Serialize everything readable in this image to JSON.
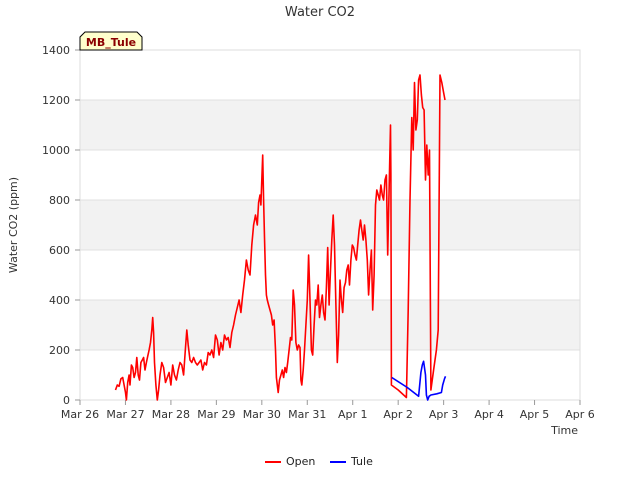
{
  "chart_data": {
    "type": "line",
    "title": "Water CO2",
    "xlabel": "Time",
    "ylabel": "Water CO2 (ppm)",
    "site_label": "MB_Tule",
    "ylim": [
      0,
      1400
    ],
    "xlim": [
      0,
      11
    ],
    "x_tick_labels": [
      "Mar 26",
      "Mar 27",
      "Mar 28",
      "Mar 29",
      "Mar 30",
      "Mar 31",
      "Apr 1",
      "Apr 2",
      "Apr 3",
      "Apr 4",
      "Apr 5",
      "Apr 6"
    ],
    "y_ticks": [
      0,
      200,
      400,
      600,
      800,
      1000,
      1200,
      1400
    ],
    "x_unit": "days since Mar 26",
    "series": [
      {
        "name": "Open",
        "color": "#ff0000",
        "points": [
          [
            0.78,
            40
          ],
          [
            0.82,
            60
          ],
          [
            0.86,
            55
          ],
          [
            0.9,
            85
          ],
          [
            0.94,
            90
          ],
          [
            0.97,
            60
          ],
          [
            1.0,
            30
          ],
          [
            1.02,
            0
          ],
          [
            1.05,
            70
          ],
          [
            1.08,
            100
          ],
          [
            1.1,
            60
          ],
          [
            1.13,
            140
          ],
          [
            1.16,
            130
          ],
          [
            1.19,
            90
          ],
          [
            1.22,
            110
          ],
          [
            1.25,
            170
          ],
          [
            1.28,
            100
          ],
          [
            1.31,
            80
          ],
          [
            1.34,
            150
          ],
          [
            1.37,
            160
          ],
          [
            1.4,
            170
          ],
          [
            1.43,
            120
          ],
          [
            1.46,
            150
          ],
          [
            1.49,
            175
          ],
          [
            1.52,
            200
          ],
          [
            1.55,
            230
          ],
          [
            1.58,
            280
          ],
          [
            1.6,
            330
          ],
          [
            1.62,
            270
          ],
          [
            1.64,
            150
          ],
          [
            1.67,
            60
          ],
          [
            1.7,
            0
          ],
          [
            1.73,
            40
          ],
          [
            1.76,
            100
          ],
          [
            1.8,
            150
          ],
          [
            1.84,
            130
          ],
          [
            1.88,
            70
          ],
          [
            1.92,
            90
          ],
          [
            1.96,
            110
          ],
          [
            2.0,
            60
          ],
          [
            2.04,
            140
          ],
          [
            2.08,
            100
          ],
          [
            2.12,
            80
          ],
          [
            2.16,
            120
          ],
          [
            2.2,
            150
          ],
          [
            2.24,
            140
          ],
          [
            2.28,
            100
          ],
          [
            2.32,
            210
          ],
          [
            2.35,
            280
          ],
          [
            2.38,
            220
          ],
          [
            2.42,
            160
          ],
          [
            2.46,
            150
          ],
          [
            2.5,
            170
          ],
          [
            2.54,
            150
          ],
          [
            2.58,
            140
          ],
          [
            2.62,
            150
          ],
          [
            2.66,
            160
          ],
          [
            2.7,
            120
          ],
          [
            2.74,
            150
          ],
          [
            2.78,
            140
          ],
          [
            2.82,
            190
          ],
          [
            2.86,
            180
          ],
          [
            2.9,
            200
          ],
          [
            2.94,
            170
          ],
          [
            2.98,
            260
          ],
          [
            3.02,
            240
          ],
          [
            3.06,
            180
          ],
          [
            3.1,
            230
          ],
          [
            3.14,
            200
          ],
          [
            3.18,
            260
          ],
          [
            3.22,
            240
          ],
          [
            3.26,
            250
          ],
          [
            3.3,
            210
          ],
          [
            3.34,
            270
          ],
          [
            3.38,
            300
          ],
          [
            3.42,
            340
          ],
          [
            3.46,
            370
          ],
          [
            3.5,
            400
          ],
          [
            3.54,
            350
          ],
          [
            3.58,
            420
          ],
          [
            3.62,
            480
          ],
          [
            3.66,
            560
          ],
          [
            3.7,
            520
          ],
          [
            3.74,
            500
          ],
          [
            3.78,
            620
          ],
          [
            3.82,
            700
          ],
          [
            3.86,
            740
          ],
          [
            3.9,
            700
          ],
          [
            3.93,
            790
          ],
          [
            3.96,
            820
          ],
          [
            3.98,
            780
          ],
          [
            4.0,
            880
          ],
          [
            4.02,
            980
          ],
          [
            4.04,
            800
          ],
          [
            4.06,
            650
          ],
          [
            4.08,
            500
          ],
          [
            4.1,
            420
          ],
          [
            4.12,
            400
          ],
          [
            4.15,
            380
          ],
          [
            4.18,
            360
          ],
          [
            4.21,
            340
          ],
          [
            4.24,
            300
          ],
          [
            4.27,
            320
          ],
          [
            4.3,
            200
          ],
          [
            4.32,
            90
          ],
          [
            4.34,
            60
          ],
          [
            4.36,
            30
          ],
          [
            4.39,
            80
          ],
          [
            4.42,
            100
          ],
          [
            4.45,
            120
          ],
          [
            4.48,
            90
          ],
          [
            4.51,
            130
          ],
          [
            4.54,
            110
          ],
          [
            4.57,
            150
          ],
          [
            4.6,
            200
          ],
          [
            4.63,
            250
          ],
          [
            4.66,
            240
          ],
          [
            4.69,
            440
          ],
          [
            4.72,
            380
          ],
          [
            4.75,
            230
          ],
          [
            4.78,
            200
          ],
          [
            4.81,
            220
          ],
          [
            4.84,
            210
          ],
          [
            4.86,
            80
          ],
          [
            4.88,
            60
          ],
          [
            4.91,
            120
          ],
          [
            4.94,
            200
          ],
          [
            4.97,
            300
          ],
          [
            5.0,
            400
          ],
          [
            5.03,
            580
          ],
          [
            5.06,
            400
          ],
          [
            5.09,
            200
          ],
          [
            5.12,
            180
          ],
          [
            5.15,
            300
          ],
          [
            5.18,
            400
          ],
          [
            5.21,
            380
          ],
          [
            5.24,
            460
          ],
          [
            5.27,
            330
          ],
          [
            5.3,
            380
          ],
          [
            5.33,
            420
          ],
          [
            5.36,
            350
          ],
          [
            5.39,
            320
          ],
          [
            5.42,
            450
          ],
          [
            5.45,
            610
          ],
          [
            5.48,
            380
          ],
          [
            5.51,
            520
          ],
          [
            5.54,
            640
          ],
          [
            5.57,
            740
          ],
          [
            5.6,
            620
          ],
          [
            5.63,
            380
          ],
          [
            5.66,
            150
          ],
          [
            5.69,
            260
          ],
          [
            5.72,
            480
          ],
          [
            5.75,
            400
          ],
          [
            5.78,
            350
          ],
          [
            5.81,
            450
          ],
          [
            5.84,
            470
          ],
          [
            5.87,
            520
          ],
          [
            5.9,
            540
          ],
          [
            5.93,
            460
          ],
          [
            5.96,
            560
          ],
          [
            5.99,
            620
          ],
          [
            6.02,
            610
          ],
          [
            6.05,
            580
          ],
          [
            6.08,
            560
          ],
          [
            6.11,
            620
          ],
          [
            6.14,
            680
          ],
          [
            6.17,
            720
          ],
          [
            6.2,
            680
          ],
          [
            6.23,
            640
          ],
          [
            6.26,
            700
          ],
          [
            6.29,
            640
          ],
          [
            6.32,
            560
          ],
          [
            6.35,
            420
          ],
          [
            6.38,
            520
          ],
          [
            6.41,
            600
          ],
          [
            6.44,
            360
          ],
          [
            6.47,
            500
          ],
          [
            6.5,
            780
          ],
          [
            6.53,
            840
          ],
          [
            6.56,
            820
          ],
          [
            6.59,
            800
          ],
          [
            6.62,
            860
          ],
          [
            6.65,
            820
          ],
          [
            6.68,
            800
          ],
          [
            6.71,
            880
          ],
          [
            6.74,
            900
          ],
          [
            6.77,
            580
          ],
          [
            6.8,
            840
          ],
          [
            6.83,
            1100
          ],
          [
            6.84,
            900
          ],
          [
            6.85,
            60
          ],
          [
            7.0,
            40
          ],
          [
            7.18,
            10
          ],
          [
            7.22,
            360
          ],
          [
            7.26,
            800
          ],
          [
            7.3,
            1130
          ],
          [
            7.33,
            1000
          ],
          [
            7.36,
            1270
          ],
          [
            7.39,
            1080
          ],
          [
            7.42,
            1120
          ],
          [
            7.45,
            1280
          ],
          [
            7.48,
            1300
          ],
          [
            7.51,
            1220
          ],
          [
            7.54,
            1170
          ],
          [
            7.57,
            1160
          ],
          [
            7.6,
            880
          ],
          [
            7.63,
            1020
          ],
          [
            7.66,
            900
          ],
          [
            7.69,
            1000
          ],
          [
            7.72,
            40
          ],
          [
            7.78,
            120
          ],
          [
            7.84,
            200
          ],
          [
            7.88,
            280
          ],
          [
            7.92,
            1300
          ],
          [
            7.96,
            1270
          ],
          [
            8.0,
            1230
          ],
          [
            8.03,
            1200
          ]
        ]
      },
      {
        "name": "Tule",
        "color": "#0000ff",
        "points": [
          [
            6.86,
            90
          ],
          [
            7.2,
            50
          ],
          [
            7.45,
            15
          ],
          [
            7.5,
            110
          ],
          [
            7.53,
            140
          ],
          [
            7.56,
            155
          ],
          [
            7.6,
            100
          ],
          [
            7.62,
            20
          ],
          [
            7.65,
            0
          ],
          [
            7.68,
            15
          ],
          [
            7.72,
            20
          ],
          [
            7.85,
            25
          ],
          [
            7.95,
            30
          ],
          [
            7.98,
            60
          ],
          [
            8.02,
            85
          ],
          [
            8.04,
            95
          ]
        ]
      }
    ]
  }
}
